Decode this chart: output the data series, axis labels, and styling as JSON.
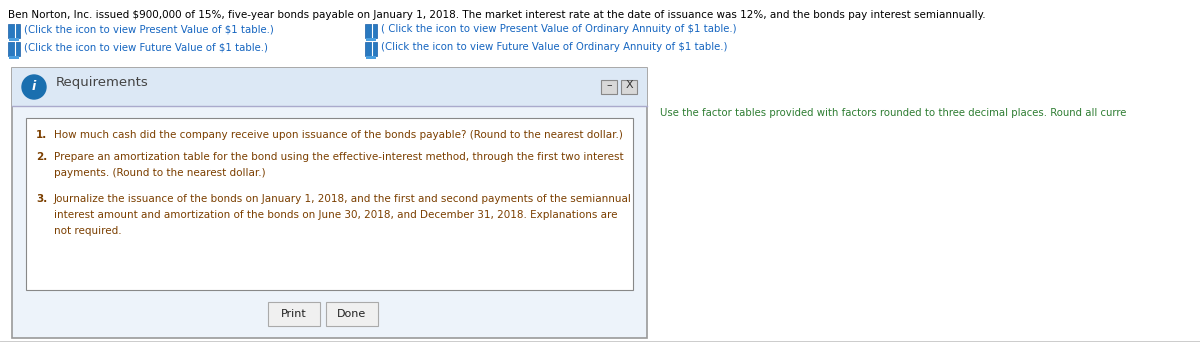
{
  "header_text": "Ben Norton, Inc. issued $900,000 of 15%, five-year bonds payable on January 1, 2018. The market interest rate at the date of issuance was 12%, and the bonds pay interest semiannually.",
  "link1": "(Click the icon to view Present Value of $1 table.)",
  "link2": "( Click the icon to view Present Value of Ordinary Annuity of $1 table.)",
  "link3": "(Click the icon to view Future Value of $1 table.)",
  "link4": "(Click the icon to view Future Value of Ordinary Annuity of $1 table.)",
  "dialog_title": "Requirements",
  "dialog_minus": "–",
  "dialog_x": "X",
  "req1_num": "1.",
  "req1_text": "How much cash did the company receive upon issuance of the bonds payable? (Round to the nearest dollar.)",
  "req2_num": "2.",
  "req2_text": "Prepare an amortization table for the bond using the effective-interest method, through the first two interest\n        payments. (Round to the nearest dollar.)",
  "req3_num": "3.",
  "req3_text": "Journalize the issuance of the bonds on January 1, 2018, and the first and second payments of the semiannual\n        interest amount and amortization of the bonds on June 30, 2018, and December 31, 2018. Explanations are\n        not required.",
  "btn_print": "Print",
  "btn_done": "Done",
  "right_text": "Use the factor tables provided with factors rounded to three decimal places. Round all curre",
  "bg_color": "#ffffff",
  "header_color": "#000000",
  "link_color": "#1565c0",
  "dialog_bg": "#edf3fa",
  "dialog_inner_bg": "#f5f9fd",
  "dialog_border": "#aaaaaa",
  "dialog_title_color": "#555555",
  "req_color": "#7B3F00",
  "right_text_color": "#2e7d32",
  "info_icon_color": "#1a6faf",
  "book_color": "#2979c0"
}
